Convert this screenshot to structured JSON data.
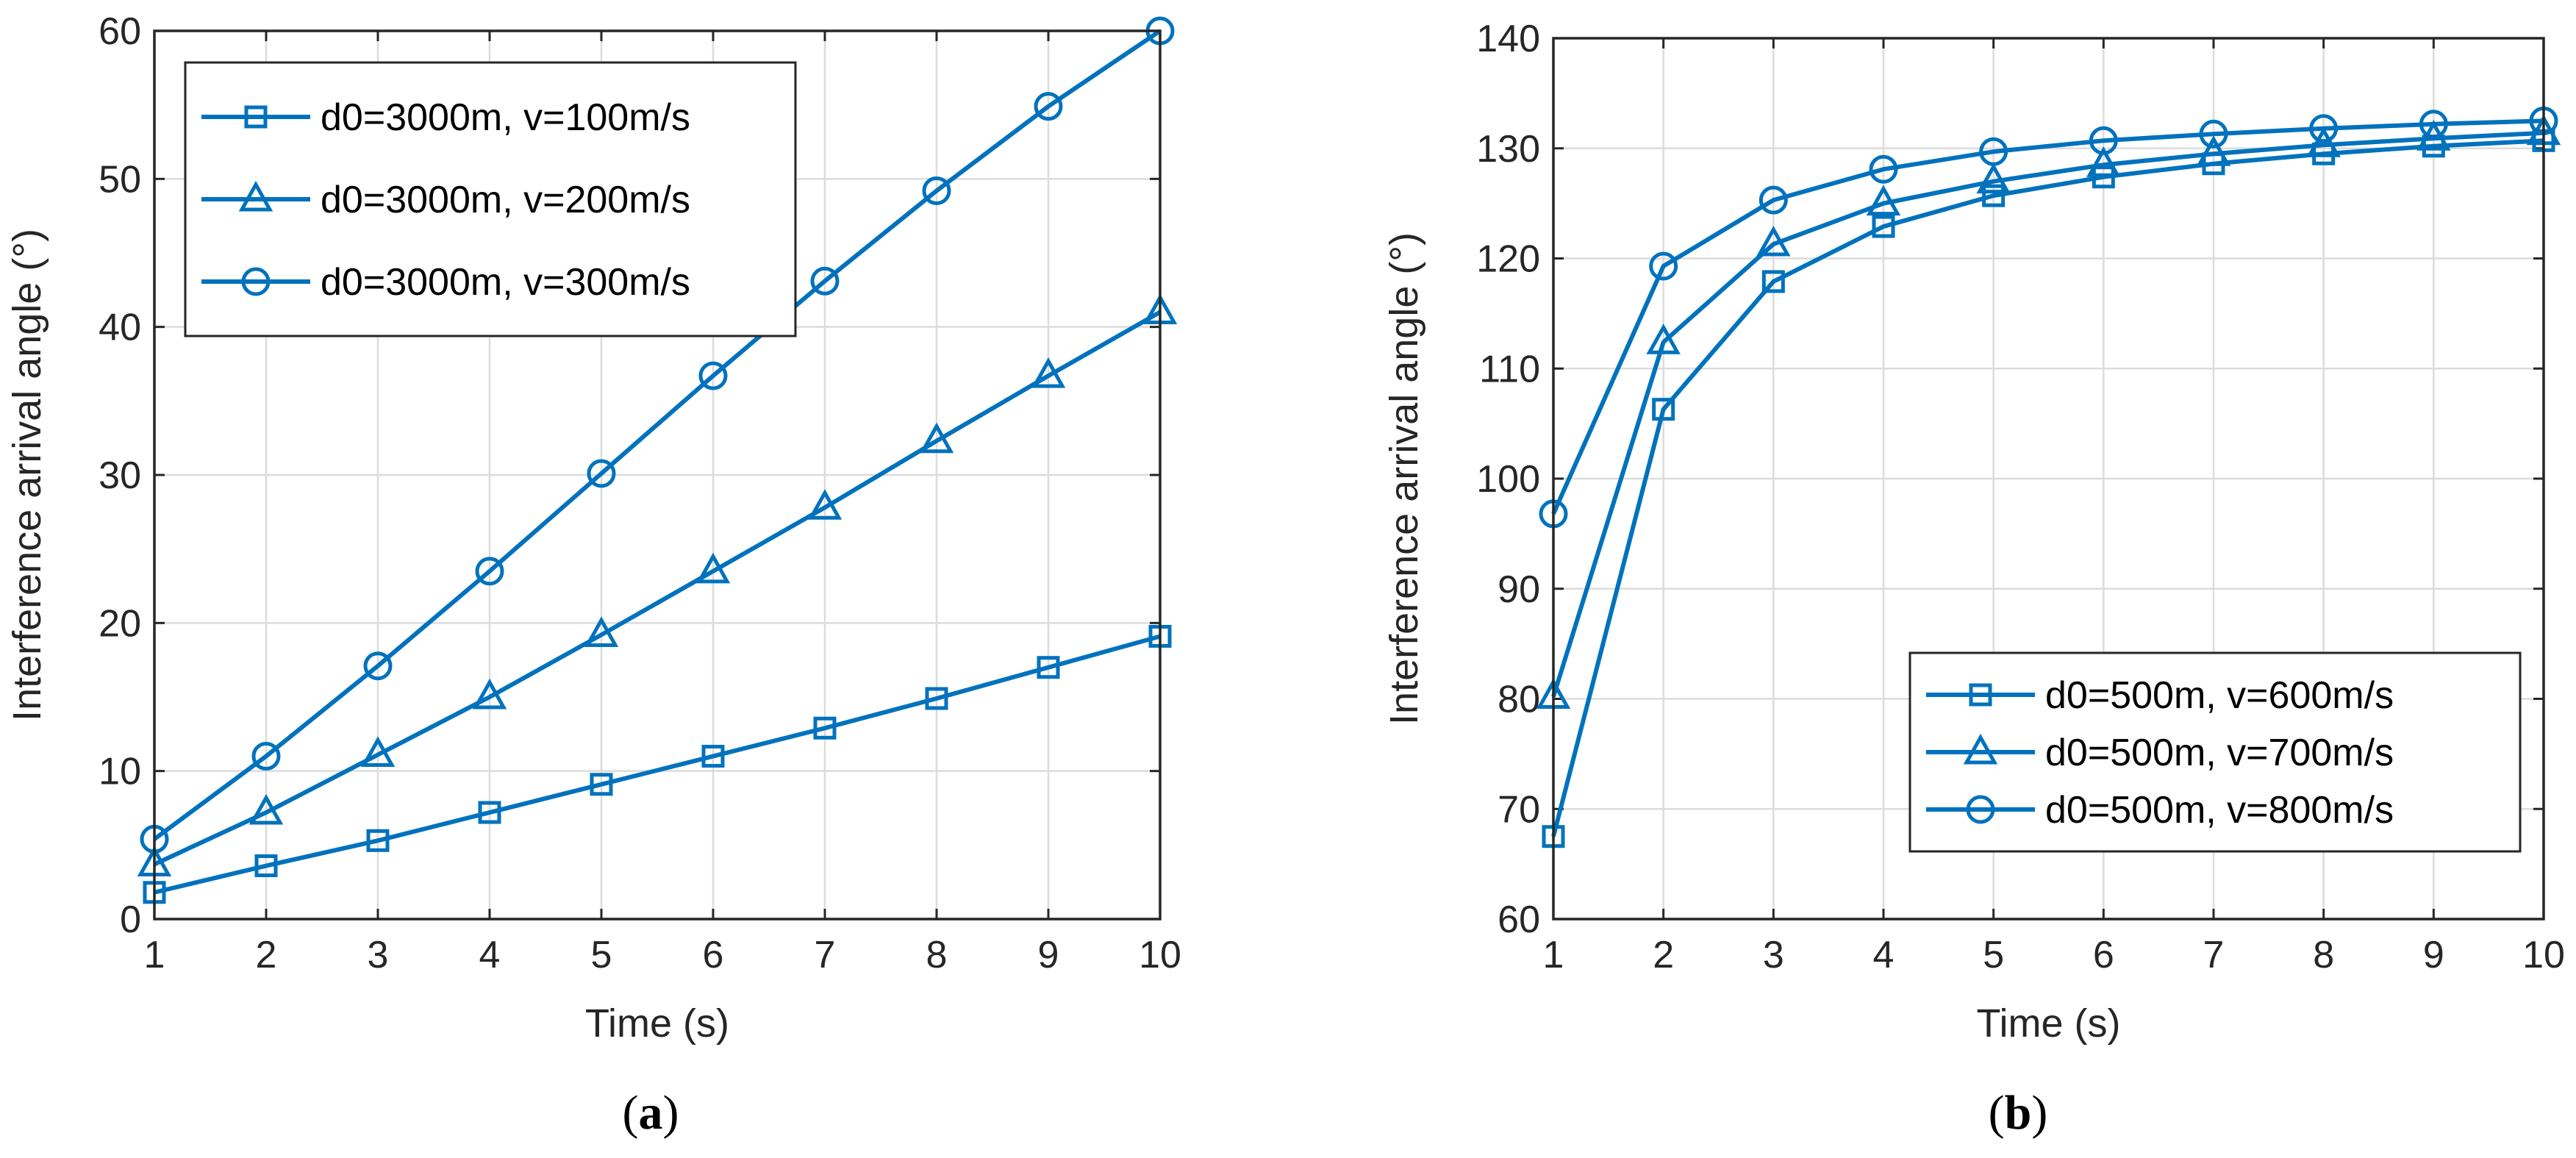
{
  "captions": {
    "a_open": "(",
    "a_letter": "a",
    "a_close": ")",
    "b_open": "(",
    "b_letter": "b",
    "b_close": ")"
  },
  "colors": {
    "series": "#0072BD",
    "grid": "#dcdcdc",
    "axis": "#262626"
  },
  "chart_data": [
    {
      "type": "line",
      "panel": "a",
      "xlabel": "Time (s)",
      "ylabel": "Interference arrival angle (°)",
      "xlim": [
        1,
        10
      ],
      "ylim": [
        0,
        60
      ],
      "xticks": [
        1,
        2,
        3,
        4,
        5,
        6,
        7,
        8,
        9,
        10
      ],
      "yticks": [
        0,
        10,
        20,
        30,
        40,
        50,
        60
      ],
      "grid": true,
      "legend_position": "top-left",
      "x": [
        1,
        2,
        3,
        4,
        5,
        6,
        7,
        8,
        9,
        10
      ],
      "series": [
        {
          "name": "d0=3000m, v=100m/s",
          "marker": "square",
          "values": [
            1.8,
            3.6,
            5.3,
            7.2,
            9.1,
            11.0,
            12.9,
            14.9,
            17.0,
            19.1
          ]
        },
        {
          "name": "d0=3000m, v=200m/s",
          "marker": "triangle",
          "values": [
            3.7,
            7.2,
            11.1,
            15.0,
            19.2,
            23.5,
            27.8,
            32.3,
            36.7,
            41.0
          ]
        },
        {
          "name": "d0=3000m, v=300m/s",
          "marker": "circle",
          "values": [
            5.4,
            11.0,
            17.1,
            23.5,
            30.1,
            36.7,
            43.1,
            49.2,
            54.9,
            60.0
          ]
        }
      ]
    },
    {
      "type": "line",
      "panel": "b",
      "xlabel": "Time (s)",
      "ylabel": "Interference arrival angle (°)",
      "xlim": [
        1,
        10
      ],
      "ylim": [
        60,
        140
      ],
      "xticks": [
        1,
        2,
        3,
        4,
        5,
        6,
        7,
        8,
        9,
        10
      ],
      "yticks": [
        60,
        70,
        80,
        90,
        100,
        110,
        120,
        130,
        140
      ],
      "grid": true,
      "legend_position": "bottom-right",
      "x": [
        1,
        2,
        3,
        4,
        5,
        6,
        7,
        8,
        9,
        10
      ],
      "series": [
        {
          "name": "d0=500m, v=600m/s",
          "marker": "square",
          "values": [
            67.5,
            106.3,
            117.9,
            122.9,
            125.7,
            127.4,
            128.6,
            129.5,
            130.2,
            130.7
          ]
        },
        {
          "name": "d0=500m, v=700m/s",
          "marker": "triangle",
          "values": [
            80.2,
            112.4,
            121.3,
            125.0,
            127.0,
            128.5,
            129.5,
            130.3,
            130.9,
            131.4
          ]
        },
        {
          "name": "d0=500m, v=800m/s",
          "marker": "circle",
          "values": [
            96.8,
            119.3,
            125.3,
            128.1,
            129.7,
            130.7,
            131.3,
            131.8,
            132.2,
            132.5
          ]
        }
      ]
    }
  ]
}
